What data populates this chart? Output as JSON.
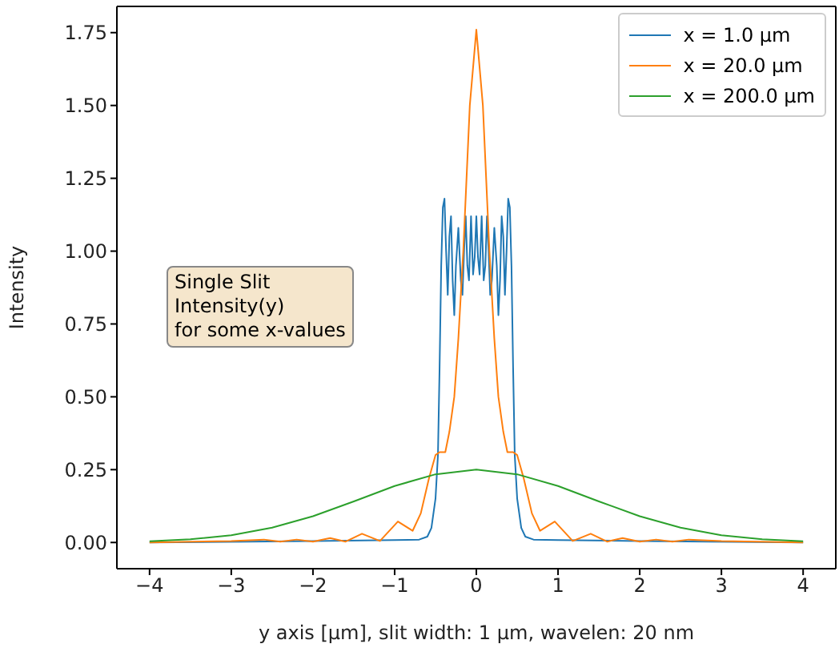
{
  "chart_data": {
    "type": "line",
    "xlabel": "y axis [μm], slit width: 1 μm, wavelen: 20 nm",
    "ylabel": "Intensity",
    "annotations": [
      "Single Slit\nIntensity(y)\nfor some x-values"
    ],
    "xlim": [
      -4.4,
      4.4
    ],
    "xticks": [
      {
        "value": -4,
        "label": "−4"
      },
      {
        "value": -3,
        "label": "−3"
      },
      {
        "value": -2,
        "label": "−2"
      },
      {
        "value": -1,
        "label": "−1"
      },
      0,
      1,
      2,
      3,
      4
    ],
    "ylim": [
      -0.09,
      1.84
    ],
    "yticks": [
      {
        "value": 0,
        "label": "0.00"
      },
      {
        "value": 0.25,
        "label": "0.25"
      },
      {
        "value": 0.5,
        "label": "0.50"
      },
      {
        "value": 0.75,
        "label": "0.75"
      },
      {
        "value": 1,
        "label": "1.00"
      },
      {
        "value": 1.25,
        "label": "1.25"
      },
      {
        "value": 1.5,
        "label": "1.50"
      },
      {
        "value": 1.75,
        "label": "1.75"
      }
    ],
    "legend": "top right",
    "marker": "none",
    "line_style": "solid",
    "series": [
      {
        "name": "x = 1.0 μm",
        "color": "#1f77b4",
        "x": [
          -4,
          -2,
          -1,
          -0.7,
          -0.6,
          -0.55,
          -0.5,
          -0.47,
          -0.45,
          -0.43,
          -0.41,
          -0.39,
          -0.37,
          -0.35,
          -0.33,
          -0.31,
          -0.29,
          -0.27,
          -0.25,
          -0.22,
          -0.19,
          -0.17,
          -0.15,
          -0.13,
          -0.11,
          -0.09,
          -0.065,
          -0.04,
          -0.02,
          0,
          0.02,
          0.04,
          0.065,
          0.09,
          0.11,
          0.13,
          0.15,
          0.17,
          0.19,
          0.22,
          0.25,
          0.27,
          0.29,
          0.31,
          0.33,
          0.35,
          0.37,
          0.39,
          0.41,
          0.43,
          0.45,
          0.47,
          0.5,
          0.55,
          0.6,
          0.7,
          1,
          2,
          4
        ],
        "values": [
          0,
          0.005,
          0.008,
          0.01,
          0.02,
          0.05,
          0.15,
          0.3,
          0.6,
          0.95,
          1.15,
          1.18,
          1.0,
          0.85,
          1.05,
          1.12,
          0.9,
          0.78,
          0.95,
          1.08,
          0.9,
          0.85,
          1.0,
          1.12,
          0.95,
          0.9,
          1.12,
          0.92,
          0.98,
          1.12,
          0.98,
          0.92,
          1.12,
          0.9,
          0.95,
          1.12,
          1.0,
          0.85,
          0.9,
          1.08,
          0.95,
          0.78,
          0.9,
          1.12,
          1.05,
          0.85,
          1.0,
          1.18,
          1.15,
          0.95,
          0.6,
          0.3,
          0.15,
          0.05,
          0.02,
          0.01,
          0.008,
          0.005,
          0
        ]
      },
      {
        "name": "x = 20.0 μm",
        "color": "#ff7f0e",
        "x": [
          -4,
          -3,
          -2.6,
          -2.4,
          -2.2,
          -2,
          -1.79,
          -1.6,
          -1.4,
          -1.18,
          -0.96,
          -0.78,
          -0.68,
          -0.58,
          -0.5,
          -0.45,
          -0.38,
          -0.33,
          -0.27,
          -0.22,
          -0.16,
          -0.08,
          0,
          0.08,
          0.16,
          0.22,
          0.27,
          0.33,
          0.38,
          0.45,
          0.5,
          0.58,
          0.68,
          0.78,
          0.96,
          1.18,
          1.4,
          1.6,
          1.79,
          2,
          2.2,
          2.4,
          2.6,
          3,
          4
        ],
        "values": [
          0,
          0.005,
          0.01,
          0.003,
          0.01,
          0.003,
          0.015,
          0.003,
          0.03,
          0.005,
          0.072,
          0.04,
          0.1,
          0.22,
          0.3,
          0.31,
          0.31,
          0.38,
          0.5,
          0.7,
          1.0,
          1.5,
          1.76,
          1.5,
          1.0,
          0.7,
          0.5,
          0.38,
          0.31,
          0.31,
          0.3,
          0.22,
          0.1,
          0.04,
          0.072,
          0.005,
          0.03,
          0.003,
          0.015,
          0.003,
          0.01,
          0.003,
          0.01,
          0.005,
          0
        ]
      },
      {
        "name": "x = 200.0 μm",
        "color": "#2ca02c",
        "x": [
          -4,
          -3.5,
          -3,
          -2.5,
          -2,
          -1.5,
          -1,
          -0.5,
          0,
          0.5,
          1,
          1.5,
          2,
          2.5,
          3,
          3.5,
          4
        ],
        "values": [
          0.004,
          0.011,
          0.025,
          0.051,
          0.09,
          0.141,
          0.194,
          0.234,
          0.25,
          0.234,
          0.194,
          0.141,
          0.09,
          0.051,
          0.025,
          0.011,
          0.004
        ]
      }
    ]
  }
}
